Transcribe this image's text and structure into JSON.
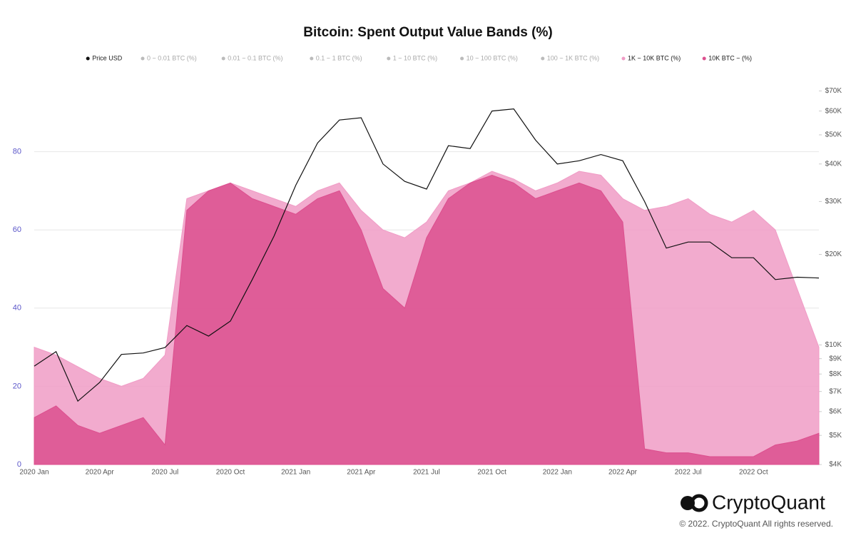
{
  "chart_data": {
    "type": "area",
    "title": "Bitcoin: Spent Output Value Bands (%)",
    "categories": [
      "2020 Jan",
      null,
      null,
      "2020 Apr",
      null,
      null,
      "2020 Jul",
      null,
      null,
      "2020 Oct",
      null,
      null,
      "2021 Jan",
      null,
      null,
      "2021 Apr",
      null,
      null,
      "2021 Jul",
      null,
      null,
      "2021 Oct",
      null,
      null,
      "2022 Jan",
      null,
      null,
      "2022 Apr",
      null,
      null,
      "2022 Jul",
      null,
      null,
      "2022 Oct",
      null,
      null,
      null
    ],
    "series": [
      {
        "name": "Price USD",
        "color": "#111111",
        "axis": "y2",
        "style": "line",
        "values": [
          8500,
          9500,
          6500,
          7500,
          9300,
          9400,
          9800,
          11600,
          10700,
          12000,
          16500,
          23000,
          34000,
          47000,
          56000,
          57000,
          40000,
          35000,
          33000,
          46000,
          45000,
          60000,
          61000,
          48000,
          40000,
          41000,
          43000,
          41000,
          30000,
          21000,
          22000,
          22000,
          19500,
          19500,
          16500,
          16800,
          16700
        ]
      },
      {
        "name": "1K ~ 10K BTC (%)",
        "color": "#f09cc6",
        "style": "area",
        "values": [
          30,
          28,
          25,
          22,
          20,
          22,
          28,
          68,
          70,
          72,
          70,
          68,
          66,
          70,
          72,
          65,
          60,
          58,
          62,
          70,
          72,
          75,
          73,
          70,
          72,
          75,
          74,
          68,
          65,
          66,
          68,
          64,
          62,
          65,
          60,
          45,
          30
        ]
      },
      {
        "name": "10K BTC ~ (%)",
        "color": "#dc4f8e",
        "style": "area",
        "values": [
          12,
          15,
          10,
          8,
          10,
          12,
          5,
          65,
          70,
          72,
          68,
          66,
          64,
          68,
          70,
          60,
          45,
          40,
          58,
          68,
          72,
          74,
          72,
          68,
          70,
          72,
          70,
          62,
          4,
          3,
          3,
          2,
          2,
          2,
          5,
          6,
          8
        ]
      }
    ],
    "legend_inactive": [
      "0 ~ 0.01 BTC (%)",
      "0.01 ~ 0.1 BTC (%)",
      "0.1 ~ 1 BTC (%)",
      "1 ~ 10 BTC (%)",
      "10 ~ 100 BTC (%)",
      "100 ~ 1K BTC (%)"
    ],
    "ylim": [
      0,
      100
    ],
    "yticks": [
      0,
      20,
      40,
      60,
      80
    ],
    "y2lim": [
      4000,
      80000
    ],
    "y2scale": "log",
    "y2ticks": [
      {
        "value": 4000,
        "label": "$4K"
      },
      {
        "value": 5000,
        "label": "$5K"
      },
      {
        "value": 6000,
        "label": "$6K"
      },
      {
        "value": 7000,
        "label": "$7K"
      },
      {
        "value": 8000,
        "label": "$8K"
      },
      {
        "value": 9000,
        "label": "$9K"
      },
      {
        "value": 10000,
        "label": "$10K"
      },
      {
        "value": 20000,
        "label": "$20K"
      },
      {
        "value": 30000,
        "label": "$30K"
      },
      {
        "value": 40000,
        "label": "$40K"
      },
      {
        "value": 50000,
        "label": "$50K"
      },
      {
        "value": 60000,
        "label": "$60K"
      },
      {
        "value": 70000,
        "label": "$70K"
      }
    ],
    "grid": true
  },
  "brand": "CryptoQuant",
  "copyright": "© 2022. CryptoQuant All rights reserved."
}
